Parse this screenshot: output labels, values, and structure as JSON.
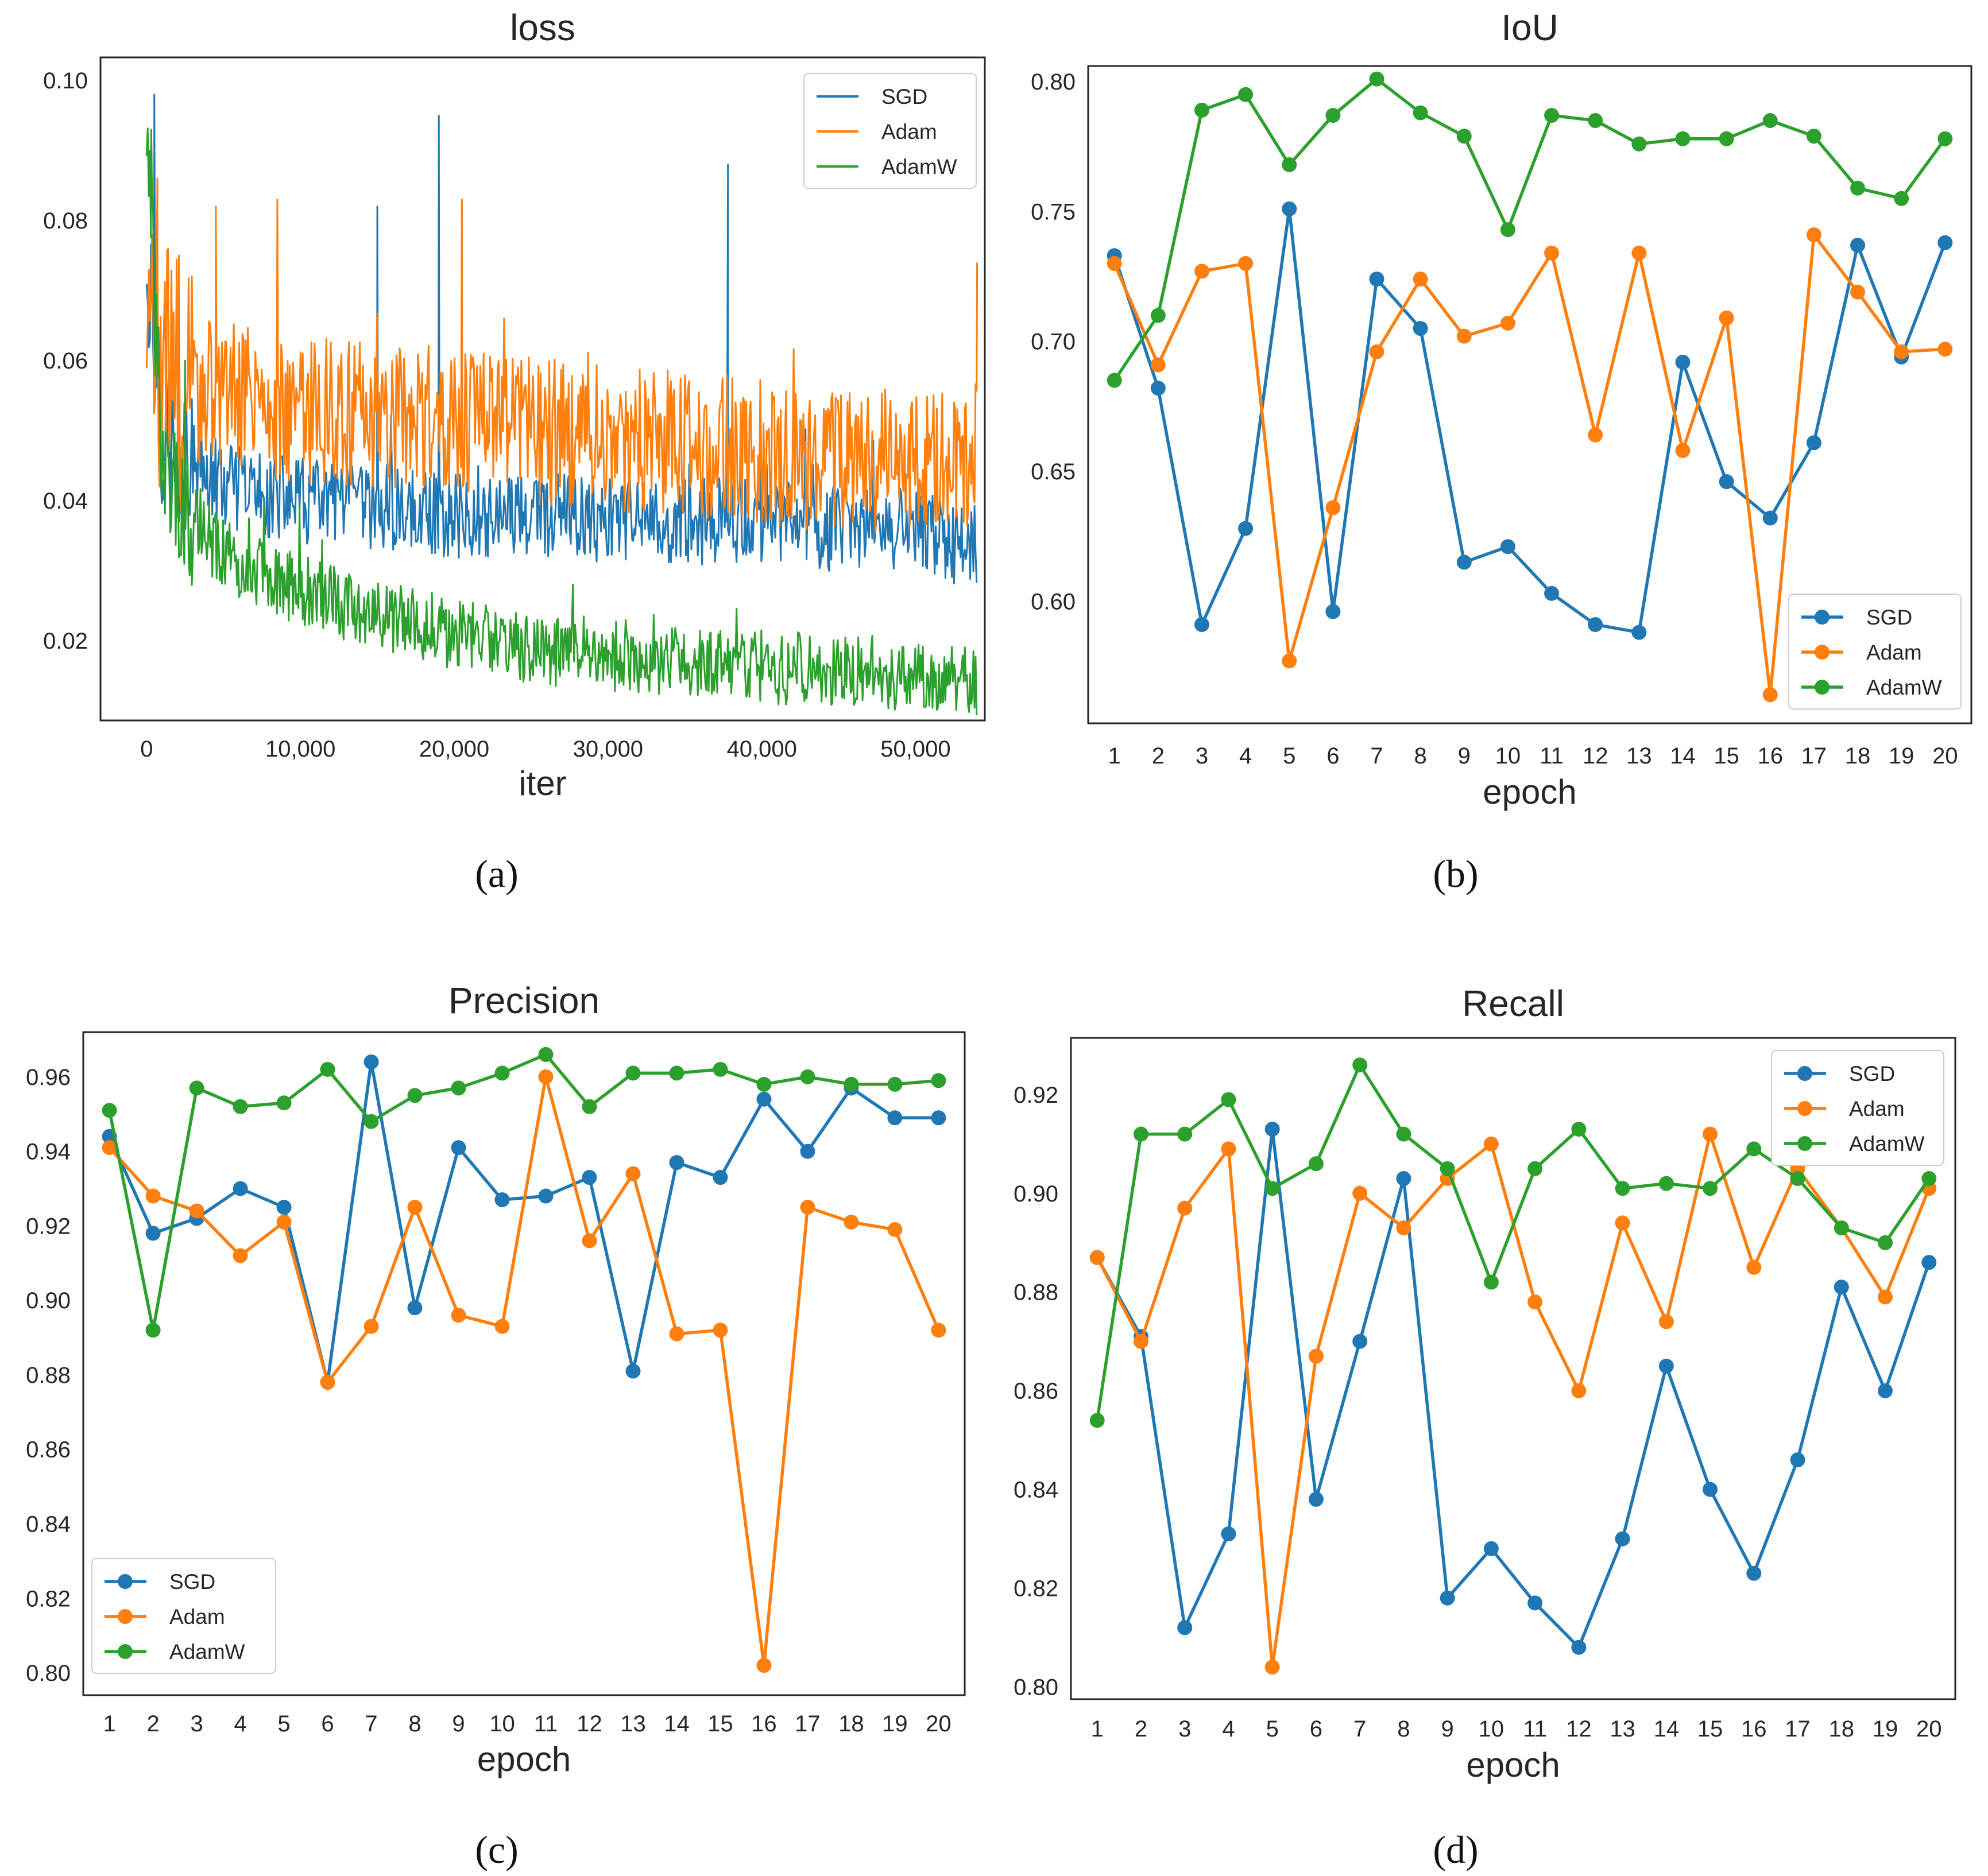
{
  "colors": {
    "SGD": "#1f77b4",
    "Adam": "#ff7f0e",
    "AdamW": "#2ca02c"
  },
  "captions": [
    "(a)",
    "(b)",
    "(c)",
    "(d)"
  ],
  "chart_data": [
    {
      "id": "loss",
      "type": "line",
      "title": "loss",
      "xlabel": "iter",
      "ylabel": "",
      "xlim": [
        -3000,
        54500
      ],
      "ylim": [
        0.0086,
        0.1033
      ],
      "xticks": [
        0,
        10000,
        20000,
        30000,
        40000,
        50000
      ],
      "xtick_labels": [
        "0",
        "10,000",
        "20,000",
        "30,000",
        "40,000",
        "50,000"
      ],
      "yticks": [
        0.02,
        0.04,
        0.06,
        0.08,
        0.1
      ],
      "ytick_labels": [
        "0.02",
        "0.04",
        "0.06",
        "0.08",
        "0.10"
      ],
      "legend": "top-right",
      "grid": false,
      "markers": false,
      "series": [
        {
          "name": "SGD",
          "x": [
            0,
            1000,
            3000,
            5000,
            10000,
            15000,
            20000,
            25000,
            30000,
            35000,
            40000,
            45000,
            50000,
            54000
          ],
          "y": [
            0.076,
            0.05,
            0.045,
            0.042,
            0.04,
            0.039,
            0.038,
            0.038,
            0.037,
            0.037,
            0.037,
            0.036,
            0.036,
            0.033
          ],
          "spikes": [
            [
              500,
              0.098
            ],
            [
              15000,
              0.082
            ],
            [
              19000,
              0.095
            ],
            [
              37800,
              0.088
            ]
          ]
        },
        {
          "name": "Adam",
          "x": [
            0,
            1000,
            3000,
            5000,
            10000,
            15000,
            20000,
            25000,
            30000,
            35000,
            40000,
            45000,
            50000,
            54000
          ],
          "y": [
            0.067,
            0.058,
            0.056,
            0.055,
            0.053,
            0.052,
            0.052,
            0.05,
            0.049,
            0.048,
            0.047,
            0.046,
            0.045,
            0.047
          ],
          "spikes": [
            [
              700,
              0.086
            ],
            [
              4500,
              0.082
            ],
            [
              8500,
              0.083
            ],
            [
              20500,
              0.083
            ],
            [
              54000,
              0.074
            ]
          ]
        },
        {
          "name": "AdamW",
          "x": [
            0,
            1000,
            3000,
            5000,
            10000,
            15000,
            20000,
            25000,
            30000,
            35000,
            40000,
            45000,
            50000,
            54000
          ],
          "y": [
            0.093,
            0.045,
            0.037,
            0.032,
            0.027,
            0.024,
            0.021,
            0.019,
            0.018,
            0.017,
            0.016,
            0.016,
            0.015,
            0.014
          ],
          "spikes": [
            [
              300,
              0.093
            ],
            [
              2500,
              0.06
            ]
          ]
        }
      ]
    },
    {
      "id": "iou",
      "type": "line",
      "title": "IoU",
      "xlabel": "epoch",
      "ylabel": "",
      "xlim": [
        0.4,
        20.6
      ],
      "ylim": [
        0.553,
        0.806
      ],
      "categories": [
        1,
        2,
        3,
        4,
        5,
        6,
        7,
        8,
        9,
        10,
        11,
        12,
        13,
        14,
        15,
        16,
        17,
        18,
        19,
        20
      ],
      "yticks": [
        0.6,
        0.65,
        0.7,
        0.75,
        0.8
      ],
      "ytick_labels": [
        "0.60",
        "0.65",
        "0.70",
        "0.75",
        "0.80"
      ],
      "legend": "bottom-right",
      "grid": false,
      "markers": true,
      "series": [
        {
          "name": "SGD",
          "values": [
            0.733,
            0.682,
            0.591,
            0.628,
            0.751,
            0.596,
            0.724,
            0.705,
            0.615,
            0.621,
            0.603,
            0.591,
            0.588,
            0.692,
            0.646,
            0.632,
            0.661,
            0.737,
            0.694,
            0.738
          ]
        },
        {
          "name": "Adam",
          "values": [
            0.73,
            0.691,
            0.727,
            0.73,
            0.577,
            0.636,
            0.696,
            0.724,
            0.702,
            0.707,
            0.734,
            0.664,
            0.734,
            0.658,
            0.709,
            0.564,
            0.741,
            0.719,
            0.696,
            0.697
          ]
        },
        {
          "name": "AdamW",
          "values": [
            0.685,
            0.71,
            0.789,
            0.795,
            0.768,
            0.787,
            0.801,
            0.788,
            0.779,
            0.743,
            0.787,
            0.785,
            0.776,
            0.778,
            0.778,
            0.785,
            0.779,
            0.759,
            0.755,
            0.778
          ]
        }
      ]
    },
    {
      "id": "precision",
      "type": "line",
      "title": "Precision",
      "xlabel": "epoch",
      "ylabel": "",
      "xlim": [
        0.4,
        20.6
      ],
      "ylim": [
        0.794,
        0.972
      ],
      "categories": [
        1,
        2,
        3,
        4,
        5,
        6,
        7,
        8,
        9,
        10,
        11,
        12,
        13,
        14,
        15,
        16,
        17,
        18,
        19,
        20
      ],
      "yticks": [
        0.8,
        0.82,
        0.84,
        0.86,
        0.88,
        0.9,
        0.92,
        0.94,
        0.96
      ],
      "ytick_labels": [
        "0.80",
        "0.82",
        "0.84",
        "0.86",
        "0.88",
        "0.90",
        "0.92",
        "0.94",
        "0.96"
      ],
      "legend": "bottom-left",
      "grid": false,
      "markers": true,
      "series": [
        {
          "name": "SGD",
          "values": [
            0.944,
            0.918,
            0.922,
            0.93,
            0.925,
            0.878,
            0.964,
            0.898,
            0.941,
            0.927,
            0.928,
            0.933,
            0.881,
            0.937,
            0.933,
            0.954,
            0.94,
            0.957,
            0.949,
            0.949
          ]
        },
        {
          "name": "Adam",
          "values": [
            0.941,
            0.928,
            0.924,
            0.912,
            0.921,
            0.878,
            0.893,
            0.925,
            0.896,
            0.893,
            0.96,
            0.916,
            0.934,
            0.891,
            0.892,
            0.802,
            0.925,
            0.921,
            0.919,
            0.892
          ]
        },
        {
          "name": "AdamW",
          "values": [
            0.951,
            0.892,
            0.957,
            0.952,
            0.953,
            0.962,
            0.948,
            0.955,
            0.957,
            0.961,
            0.966,
            0.952,
            0.961,
            0.961,
            0.962,
            0.958,
            0.96,
            0.958,
            0.958,
            0.959
          ]
        }
      ]
    },
    {
      "id": "recall",
      "type": "line",
      "title": "Recall",
      "xlabel": "epoch",
      "ylabel": "",
      "xlim": [
        0.4,
        20.6
      ],
      "ylim": [
        0.7975,
        0.9315
      ],
      "categories": [
        1,
        2,
        3,
        4,
        5,
        6,
        7,
        8,
        9,
        10,
        11,
        12,
        13,
        14,
        15,
        16,
        17,
        18,
        19,
        20
      ],
      "yticks": [
        0.8,
        0.82,
        0.84,
        0.86,
        0.88,
        0.9,
        0.92
      ],
      "ytick_labels": [
        "0.80",
        "0.82",
        "0.84",
        "0.86",
        "0.88",
        "0.90",
        "0.92"
      ],
      "legend": "top-right",
      "grid": false,
      "markers": true,
      "series": [
        {
          "name": "SGD",
          "values": [
            0.887,
            0.871,
            0.812,
            0.831,
            0.913,
            0.838,
            0.87,
            0.903,
            0.818,
            0.828,
            0.817,
            0.808,
            0.83,
            0.865,
            0.84,
            0.823,
            0.846,
            0.881,
            0.86,
            0.886
          ]
        },
        {
          "name": "Adam",
          "values": [
            0.887,
            0.87,
            0.897,
            0.909,
            0.804,
            0.867,
            0.9,
            0.893,
            0.903,
            0.91,
            0.878,
            0.86,
            0.894,
            0.874,
            0.912,
            0.885,
            0.905,
            0.893,
            0.879,
            0.901
          ]
        },
        {
          "name": "AdamW",
          "values": [
            0.854,
            0.912,
            0.912,
            0.919,
            0.901,
            0.906,
            0.926,
            0.912,
            0.905,
            0.882,
            0.905,
            0.913,
            0.901,
            0.902,
            0.901,
            0.909,
            0.903,
            0.893,
            0.89,
            0.903
          ]
        }
      ]
    }
  ]
}
